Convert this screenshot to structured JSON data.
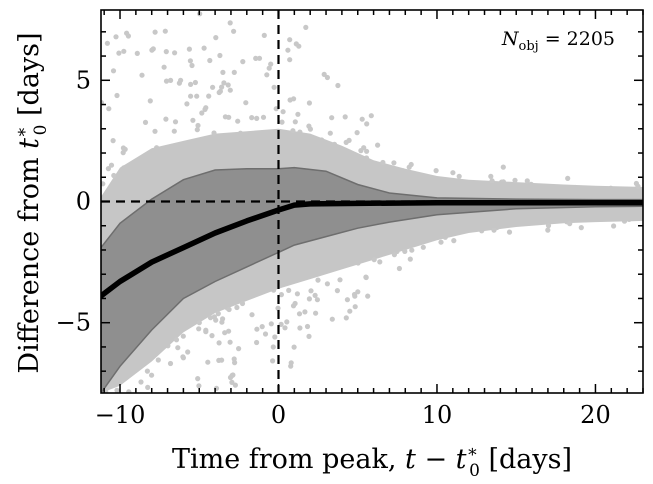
{
  "chart_data": {
    "type": "scatter",
    "title": "",
    "xlabel": "Time from peak, t − t0* [days]",
    "ylabel": "Difference from t0* [days]",
    "xlim": [
      -11.2,
      23
    ],
    "ylim": [
      -7.9,
      7.9
    ],
    "x_ticks": [
      -10,
      0,
      10,
      20
    ],
    "x_tick_labels": [
      "−10",
      "0",
      "10",
      "20"
    ],
    "y_ticks": [
      -5,
      0,
      5
    ],
    "y_tick_labels": [
      "−5",
      "0",
      "5"
    ],
    "annotation": "N_obj = 2205",
    "annotation_parts": {
      "symbol": "N",
      "subscript": "obj",
      "relation": "=",
      "count": "2205"
    },
    "reference_lines": {
      "vertical_x": 0,
      "horizontal_y": 0,
      "style": "dashed"
    },
    "series": [
      {
        "name": "median",
        "kind": "line",
        "color": "#000000",
        "x": [
          -11.2,
          -10,
          -8,
          -6,
          -4,
          -2,
          0,
          1,
          2,
          5,
          10,
          15,
          20,
          23
        ],
        "y": [
          -3.9,
          -3.3,
          -2.5,
          -1.9,
          -1.3,
          -0.8,
          -0.35,
          -0.15,
          -0.1,
          -0.08,
          -0.05,
          -0.05,
          -0.05,
          -0.05
        ]
      },
      {
        "name": "1-sigma band",
        "kind": "band",
        "color": "#8a8a8a",
        "x": [
          -11.2,
          -10,
          -8,
          -6,
          -4,
          -2,
          0,
          1,
          3,
          5,
          7,
          10,
          15,
          20,
          23
        ],
        "lower": [
          -7.9,
          -6.8,
          -5.3,
          -4.0,
          -3.3,
          -2.7,
          -2.1,
          -1.8,
          -1.45,
          -1.1,
          -0.85,
          -0.55,
          -0.3,
          -0.22,
          -0.2
        ],
        "upper": [
          -1.9,
          -0.9,
          0.1,
          0.9,
          1.3,
          1.35,
          1.35,
          1.4,
          1.25,
          0.7,
          0.35,
          0.15,
          0.1,
          0.08,
          0.08
        ]
      },
      {
        "name": "dense envelope",
        "kind": "band",
        "color": "#c6c6c6",
        "x": [
          -11.2,
          -10,
          -8,
          -6,
          -4,
          -2,
          0,
          2,
          4,
          6,
          8,
          10,
          12,
          15,
          18,
          20,
          23
        ],
        "lower": [
          -7.9,
          -7.6,
          -6.6,
          -5.4,
          -4.6,
          -4.1,
          -3.6,
          -3.2,
          -2.8,
          -2.4,
          -2.0,
          -1.6,
          -1.3,
          -1.05,
          -0.9,
          -0.85,
          -0.8
        ],
        "upper": [
          0.2,
          1.4,
          2.2,
          2.5,
          2.8,
          2.9,
          3.0,
          2.8,
          2.3,
          1.7,
          1.35,
          1.05,
          0.9,
          0.8,
          0.7,
          0.65,
          0.6
        ]
      },
      {
        "name": "objects",
        "kind": "scatter",
        "color": "#c8c8c8",
        "n_points": 2205,
        "marker": "circle",
        "note": "individual scattered points; density decreases with time from peak"
      }
    ]
  }
}
